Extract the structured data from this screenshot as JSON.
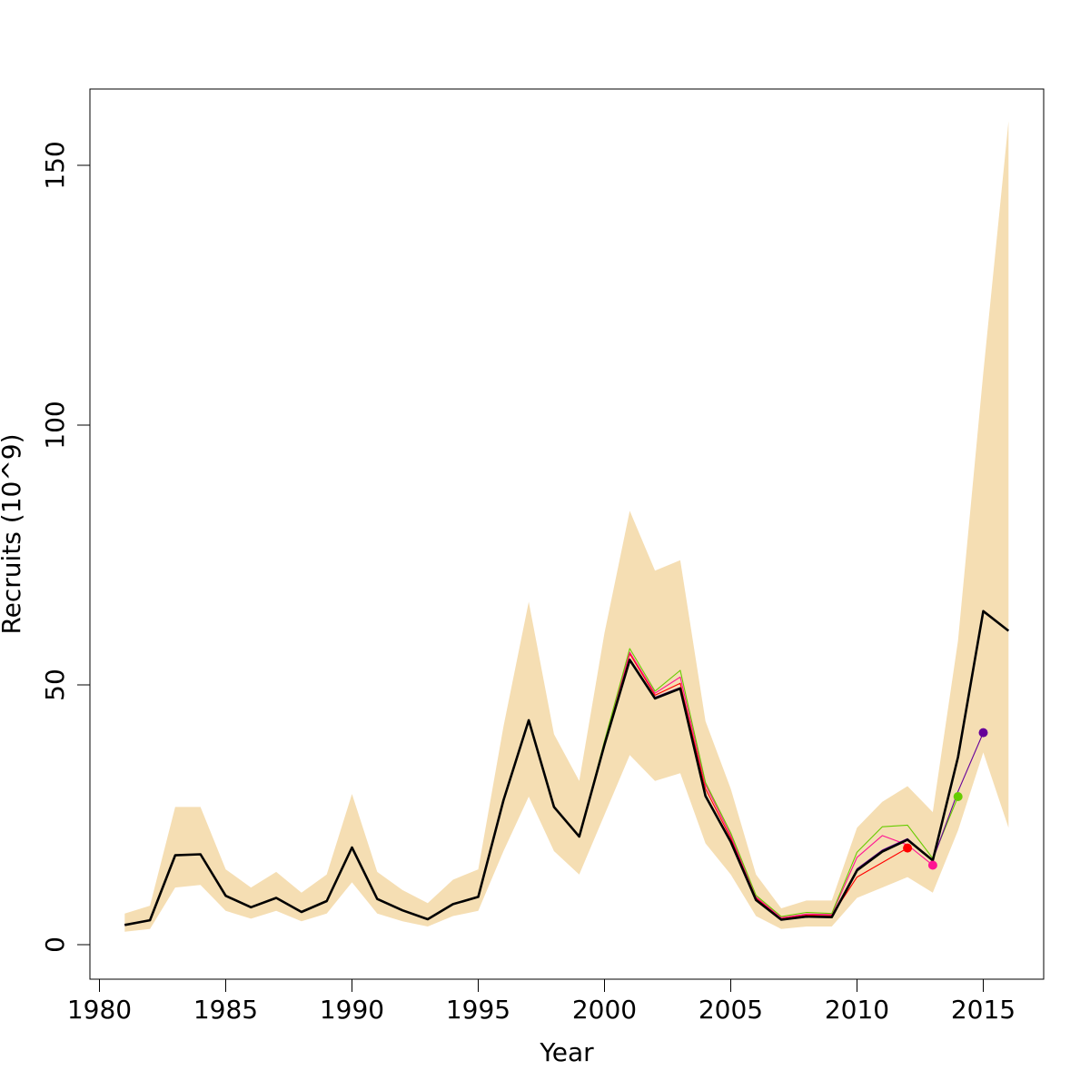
{
  "chart_data": {
    "type": "line",
    "title": "",
    "xlabel": "Year",
    "ylabel": "Recruits (10^9)",
    "xlim": [
      1980,
      2016
    ],
    "ylim": [
      -5,
      163
    ],
    "xticks": [
      1980,
      1985,
      1990,
      1995,
      2000,
      2005,
      2010,
      2015
    ],
    "yticks": [
      0,
      50,
      100,
      150
    ],
    "grid": false,
    "legend": "none",
    "band": {
      "color": "#f5deb3",
      "years": [
        1981,
        1982,
        1983,
        1984,
        1985,
        1986,
        1987,
        1988,
        1989,
        1990,
        1991,
        1992,
        1993,
        1994,
        1995,
        1996,
        1997,
        1998,
        1999,
        2000,
        2001,
        2002,
        2003,
        2004,
        2005,
        2006,
        2007,
        2008,
        2009,
        2010,
        2011,
        2012,
        2013,
        2014,
        2015,
        2016
      ],
      "lower": [
        2.5,
        3,
        11,
        11.5,
        6.5,
        5,
        6.5,
        4.5,
        6,
        12,
        6,
        4.5,
        3.5,
        5.5,
        6.5,
        18,
        28.5,
        18,
        13.5,
        25,
        36.5,
        31.5,
        33,
        19.5,
        13.5,
        5.5,
        3,
        3.5,
        3.5,
        9,
        11,
        13,
        10,
        22,
        37,
        22.5
      ],
      "upper": [
        6,
        7.5,
        26.5,
        26.5,
        14.5,
        11,
        14,
        10,
        13.5,
        29,
        14,
        10.5,
        8,
        12.5,
        14.5,
        42,
        66,
        40.5,
        31.5,
        60,
        83.5,
        72,
        74,
        43,
        30,
        13.5,
        7,
        8.5,
        8.5,
        22.5,
        27.5,
        30.5,
        25.5,
        58.5,
        110,
        158.5
      ]
    },
    "series": [
      {
        "color": "#000000",
        "x": [
          1981,
          1982,
          1983,
          1984,
          1985,
          1986,
          1987,
          1988,
          1989,
          1990,
          1991,
          1992,
          1993,
          1994,
          1995,
          1996,
          1997,
          1998,
          1999,
          2000,
          2001,
          2002,
          2003,
          2004,
          2005,
          2006,
          2007,
          2008,
          2009,
          2010,
          2011,
          2012,
          2013,
          2014,
          2015,
          2016
        ],
        "y": [
          3.8,
          4.7,
          17.2,
          17.4,
          9.4,
          7.2,
          9,
          6.3,
          8.4,
          18.7,
          8.8,
          6.6,
          4.9,
          7.8,
          9.2,
          27.8,
          43.2,
          26.5,
          20.8,
          38.5,
          54.8,
          47.4,
          49.3,
          28.6,
          19.8,
          8.6,
          4.8,
          5.4,
          5.3,
          14.3,
          17.9,
          20.2,
          16.2,
          36.1,
          64.2,
          60.4
        ]
      },
      {
        "color": "#ff0000",
        "x": [
          1981,
          1982,
          1983,
          1984,
          1985,
          1986,
          1987,
          1988,
          1989,
          1990,
          1991,
          1992,
          1993,
          1994,
          1995,
          1996,
          1997,
          1998,
          1999,
          2000,
          2001,
          2002,
          2003,
          2004,
          2005,
          2006,
          2007,
          2008,
          2009,
          2010,
          2011,
          2012
        ],
        "y": [
          3.8,
          4.7,
          17.2,
          17.4,
          9.4,
          7.2,
          9,
          6.3,
          8.4,
          18.7,
          8.8,
          6.6,
          4.9,
          7.8,
          9.2,
          27.8,
          43.2,
          26.5,
          20.8,
          38.8,
          56,
          48,
          50.3,
          30,
          20.5,
          9,
          5,
          5.7,
          5.6,
          13,
          15.8,
          18.6
        ]
      },
      {
        "color": "#ff1493",
        "x": [
          1981,
          1982,
          1983,
          1984,
          1985,
          1986,
          1987,
          1988,
          1989,
          1990,
          1991,
          1992,
          1993,
          1994,
          1995,
          1996,
          1997,
          1998,
          1999,
          2000,
          2001,
          2002,
          2003,
          2004,
          2005,
          2006,
          2007,
          2008,
          2009,
          2010,
          2011,
          2012,
          2013
        ],
        "y": [
          3.8,
          4.7,
          17.2,
          17.4,
          9.4,
          7.2,
          9,
          6.3,
          8.4,
          18.7,
          8.8,
          6.6,
          4.9,
          7.8,
          9.2,
          27.8,
          43.2,
          26.5,
          20.8,
          39,
          56.3,
          48.4,
          51.5,
          30.8,
          21,
          9.2,
          5.2,
          5.9,
          5.8,
          16.8,
          21,
          19.2,
          15.3
        ]
      },
      {
        "color": "#66cc00",
        "x": [
          1981,
          1982,
          1983,
          1984,
          1985,
          1986,
          1987,
          1988,
          1989,
          1990,
          1991,
          1992,
          1993,
          1994,
          1995,
          1996,
          1997,
          1998,
          1999,
          2000,
          2001,
          2002,
          2003,
          2004,
          2005,
          2006,
          2007,
          2008,
          2009,
          2010,
          2011,
          2012,
          2013,
          2014
        ],
        "y": [
          3.8,
          4.7,
          17.2,
          17.4,
          9.4,
          7.2,
          9,
          6.3,
          8.4,
          18.7,
          8.8,
          6.6,
          4.9,
          7.8,
          9.2,
          27.8,
          43.2,
          26.5,
          20.8,
          39.2,
          57,
          48.8,
          52.8,
          31.2,
          21.5,
          9.5,
          5.4,
          6.2,
          6,
          17.8,
          22.7,
          23,
          16.6,
          28.5
        ]
      },
      {
        "color": "#660099",
        "x": [
          1981,
          1982,
          1983,
          1984,
          1985,
          1986,
          1987,
          1988,
          1989,
          1990,
          1991,
          1992,
          1993,
          1994,
          1995,
          1996,
          1997,
          1998,
          1999,
          2000,
          2001,
          2002,
          2003,
          2004,
          2005,
          2006,
          2007,
          2008,
          2009,
          2010,
          2011,
          2012,
          2013,
          2014,
          2015
        ],
        "y": [
          3.8,
          4.7,
          17.2,
          17.4,
          9.4,
          7.2,
          9,
          6.3,
          8.4,
          18.7,
          8.8,
          6.6,
          4.9,
          7.8,
          9.2,
          27.8,
          43.2,
          26.5,
          20.8,
          38.6,
          55,
          47.6,
          49.5,
          28.8,
          20,
          8.7,
          4.9,
          5.5,
          5.4,
          14.6,
          18.2,
          20.4,
          16.3,
          29.5,
          40.8
        ]
      }
    ],
    "points": [
      {
        "x": 2012,
        "y": 18.6,
        "color": "#ff0000"
      },
      {
        "x": 2013,
        "y": 15.3,
        "color": "#ff1493"
      },
      {
        "x": 2014,
        "y": 28.5,
        "color": "#66cc00"
      },
      {
        "x": 2015,
        "y": 40.8,
        "color": "#660099"
      }
    ]
  }
}
